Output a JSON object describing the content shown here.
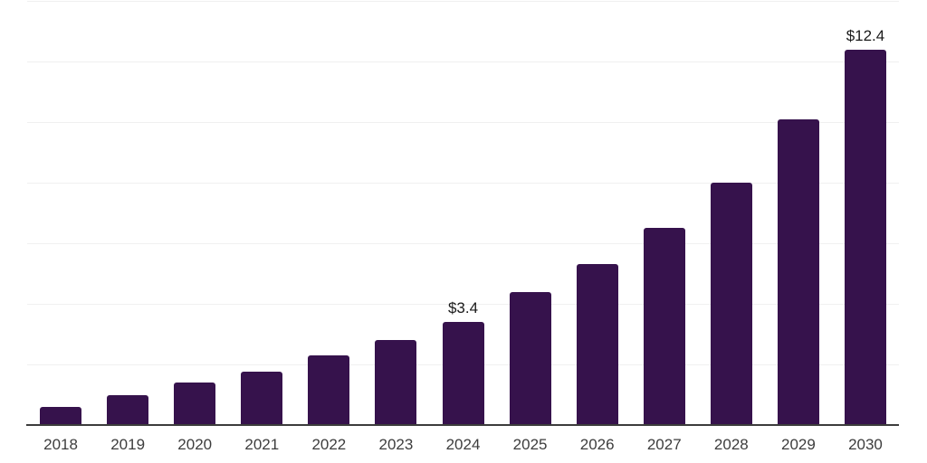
{
  "chart_data": {
    "type": "bar",
    "categories": [
      "2018",
      "2019",
      "2020",
      "2021",
      "2022",
      "2023",
      "2024",
      "2025",
      "2026",
      "2027",
      "2028",
      "2029",
      "2030"
    ],
    "values": [
      0.6,
      1.0,
      1.4,
      1.75,
      2.3,
      2.8,
      3.4,
      4.4,
      5.3,
      6.5,
      8.0,
      10.1,
      12.4
    ],
    "data_labels": {
      "2024": "$3.4",
      "2030": "$12.4"
    },
    "title": "",
    "xlabel": "",
    "ylabel": "",
    "ylim": [
      0,
      14
    ],
    "gridline_step": 2,
    "grid": true,
    "legend_position": "none",
    "colors": {
      "bar": "#36124C",
      "background": "#FFFFFF",
      "gridline": "#F0F0F0",
      "axis_line": "#3C3C3C",
      "tick_label": "#3D3D3D",
      "data_label": "#1A1A1A"
    }
  }
}
